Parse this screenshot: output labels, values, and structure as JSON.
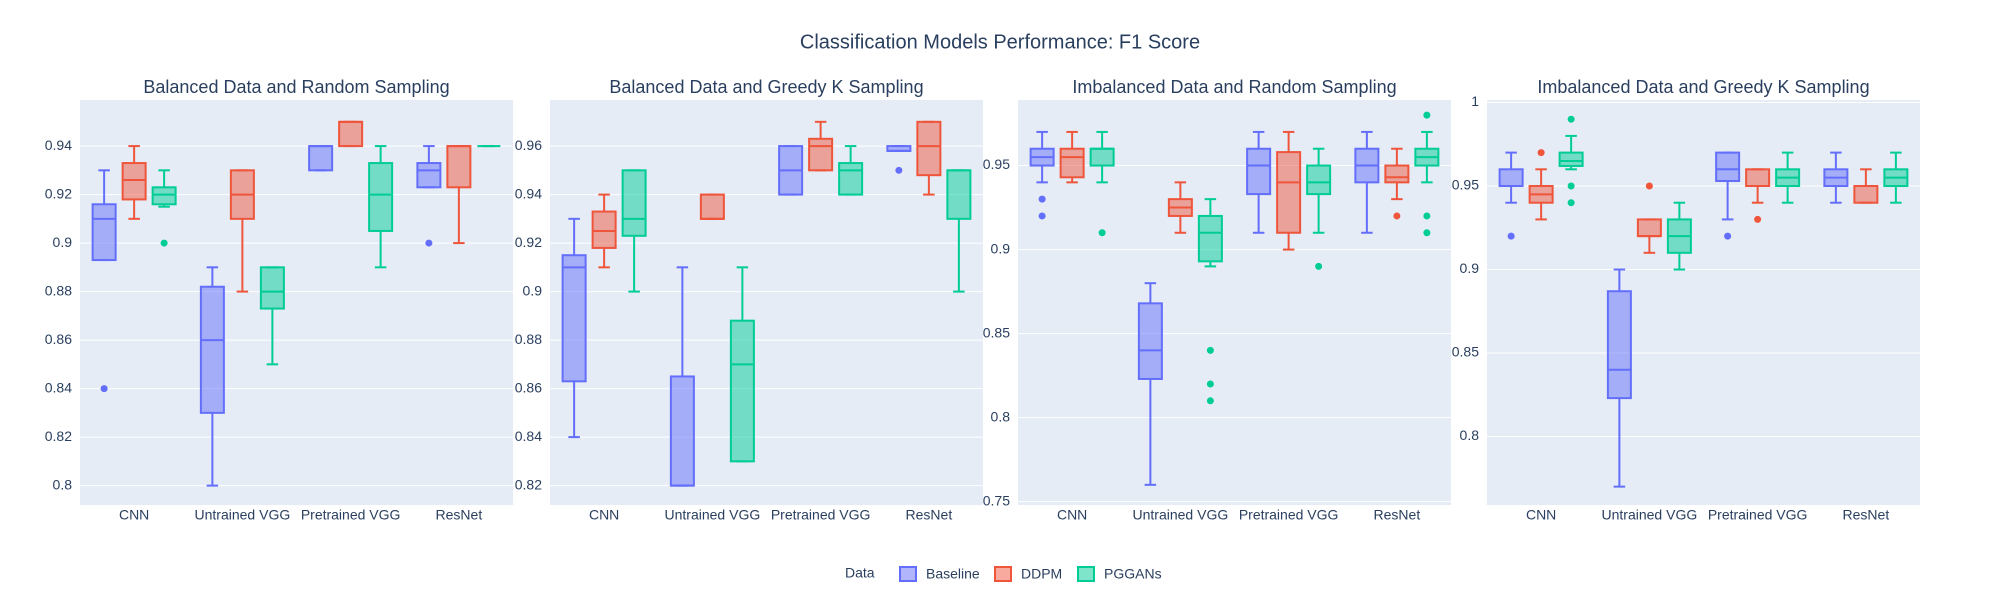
{
  "title": "Classification Models Performance: F1 Score",
  "legend_title": "Data",
  "chart_data": [
    {
      "type": "box",
      "title": "Balanced Data and Random Sampling",
      "categories": [
        "CNN",
        "Untrained VGG",
        "Pretrained VGG",
        "ResNet"
      ],
      "ylim": [
        0.792,
        0.959
      ],
      "yticks": [
        0.8,
        0.82,
        0.84,
        0.86,
        0.88,
        0.9,
        0.92,
        0.94
      ],
      "grid": true,
      "series": [
        {
          "name": "Baseline",
          "color": "#636efa",
          "values": [
            {
              "min": 0.893,
              "q1": 0.893,
              "median": 0.91,
              "q3": 0.916,
              "max": 0.93,
              "outliers": [
                0.84
              ]
            },
            {
              "min": 0.8,
              "q1": 0.83,
              "median": 0.86,
              "q3": 0.882,
              "max": 0.89
            },
            {
              "min": 0.93,
              "q1": 0.93,
              "median": 0.94,
              "q3": 0.94,
              "max": 0.94
            },
            {
              "min": 0.923,
              "q1": 0.923,
              "median": 0.93,
              "q3": 0.933,
              "max": 0.94,
              "outliers": [
                0.9
              ]
            }
          ]
        },
        {
          "name": "DDPM",
          "color": "#ef553b",
          "values": [
            {
              "min": 0.91,
              "q1": 0.918,
              "median": 0.926,
              "q3": 0.933,
              "max": 0.94
            },
            {
              "min": 0.88,
              "q1": 0.91,
              "median": 0.92,
              "q3": 0.93,
              "max": 0.93
            },
            {
              "min": 0.94,
              "q1": 0.94,
              "median": 0.95,
              "q3": 0.95,
              "max": 0.95
            },
            {
              "min": 0.9,
              "q1": 0.923,
              "median": 0.94,
              "q3": 0.94,
              "max": 0.94
            }
          ]
        },
        {
          "name": "PGGANs",
          "color": "#00cc96",
          "values": [
            {
              "min": 0.915,
              "q1": 0.916,
              "median": 0.92,
              "q3": 0.923,
              "max": 0.93,
              "outliers": [
                0.9
              ]
            },
            {
              "min": 0.85,
              "q1": 0.873,
              "median": 0.88,
              "q3": 0.89,
              "max": 0.89
            },
            {
              "min": 0.89,
              "q1": 0.905,
              "median": 0.92,
              "q3": 0.933,
              "max": 0.94
            },
            {
              "min": 0.94,
              "q1": 0.94,
              "median": 0.94,
              "q3": 0.94,
              "max": 0.94
            }
          ]
        }
      ]
    },
    {
      "type": "box",
      "title": "Balanced Data and Greedy K Sampling",
      "categories": [
        "CNN",
        "Untrained VGG",
        "Pretrained VGG",
        "ResNet"
      ],
      "ylim": [
        0.812,
        0.979
      ],
      "yticks": [
        0.82,
        0.84,
        0.86,
        0.88,
        0.9,
        0.92,
        0.94,
        0.96
      ],
      "grid": true,
      "series": [
        {
          "name": "Baseline",
          "color": "#636efa",
          "values": [
            {
              "min": 0.84,
              "q1": 0.863,
              "median": 0.91,
              "q3": 0.915,
              "max": 0.93
            },
            {
              "min": 0.82,
              "q1": 0.82,
              "median": 0.82,
              "q3": 0.865,
              "max": 0.91
            },
            {
              "min": 0.94,
              "q1": 0.94,
              "median": 0.95,
              "q3": 0.96,
              "max": 0.96
            },
            {
              "min": 0.958,
              "q1": 0.958,
              "median": 0.958,
              "q3": 0.96,
              "max": 0.96,
              "outliers": [
                0.95
              ]
            }
          ]
        },
        {
          "name": "DDPM",
          "color": "#ef553b",
          "values": [
            {
              "min": 0.91,
              "q1": 0.918,
              "median": 0.925,
              "q3": 0.933,
              "max": 0.94
            },
            {
              "min": 0.93,
              "q1": 0.93,
              "median": 0.93,
              "q3": 0.94,
              "max": 0.94
            },
            {
              "min": 0.95,
              "q1": 0.95,
              "median": 0.96,
              "q3": 0.963,
              "max": 0.97
            },
            {
              "min": 0.94,
              "q1": 0.948,
              "median": 0.96,
              "q3": 0.97,
              "max": 0.97
            }
          ]
        },
        {
          "name": "PGGANs",
          "color": "#00cc96",
          "values": [
            {
              "min": 0.9,
              "q1": 0.923,
              "median": 0.93,
              "q3": 0.95,
              "max": 0.95
            },
            {
              "min": 0.83,
              "q1": 0.83,
              "median": 0.87,
              "q3": 0.888,
              "max": 0.91
            },
            {
              "min": 0.94,
              "q1": 0.94,
              "median": 0.95,
              "q3": 0.953,
              "max": 0.96
            },
            {
              "min": 0.9,
              "q1": 0.93,
              "median": 0.95,
              "q3": 0.95,
              "max": 0.95
            }
          ]
        }
      ]
    },
    {
      "type": "box",
      "title": "Imbalanced Data and Random Sampling",
      "categories": [
        "CNN",
        "Untrained VGG",
        "Pretrained VGG",
        "ResNet"
      ],
      "ylim": [
        0.748,
        0.989
      ],
      "yticks": [
        0.75,
        0.8,
        0.85,
        0.9,
        0.95
      ],
      "grid": true,
      "series": [
        {
          "name": "Baseline",
          "color": "#636efa",
          "values": [
            {
              "min": 0.94,
              "q1": 0.95,
              "median": 0.955,
              "q3": 0.96,
              "max": 0.97,
              "outliers": [
                0.93,
                0.92
              ]
            },
            {
              "min": 0.76,
              "q1": 0.823,
              "median": 0.84,
              "q3": 0.868,
              "max": 0.88
            },
            {
              "min": 0.91,
              "q1": 0.933,
              "median": 0.95,
              "q3": 0.96,
              "max": 0.97
            },
            {
              "min": 0.91,
              "q1": 0.94,
              "median": 0.95,
              "q3": 0.96,
              "max": 0.97
            }
          ]
        },
        {
          "name": "DDPM",
          "color": "#ef553b",
          "values": [
            {
              "min": 0.94,
              "q1": 0.943,
              "median": 0.955,
              "q3": 0.96,
              "max": 0.97
            },
            {
              "min": 0.91,
              "q1": 0.92,
              "median": 0.925,
              "q3": 0.93,
              "max": 0.94
            },
            {
              "min": 0.9,
              "q1": 0.91,
              "median": 0.94,
              "q3": 0.958,
              "max": 0.97
            },
            {
              "min": 0.93,
              "q1": 0.94,
              "median": 0.943,
              "q3": 0.95,
              "max": 0.96,
              "outliers": [
                0.92
              ]
            }
          ]
        },
        {
          "name": "PGGANs",
          "color": "#00cc96",
          "values": [
            {
              "min": 0.94,
              "q1": 0.95,
              "median": 0.96,
              "q3": 0.96,
              "max": 0.97,
              "outliers": [
                0.91
              ]
            },
            {
              "min": 0.89,
              "q1": 0.893,
              "median": 0.91,
              "q3": 0.92,
              "max": 0.93,
              "outliers": [
                0.84,
                0.82,
                0.81
              ]
            },
            {
              "min": 0.91,
              "q1": 0.933,
              "median": 0.94,
              "q3": 0.95,
              "max": 0.96,
              "outliers": [
                0.89
              ]
            },
            {
              "min": 0.94,
              "q1": 0.95,
              "median": 0.955,
              "q3": 0.96,
              "max": 0.97,
              "outliers": [
                0.98,
                0.92,
                0.91
              ]
            }
          ]
        }
      ]
    },
    {
      "type": "box",
      "title": "Imbalanced Data and Greedy K Sampling",
      "categories": [
        "CNN",
        "Untrained VGG",
        "Pretrained VGG",
        "ResNet"
      ],
      "ylim": [
        0.759,
        1.0015
      ],
      "yticks": [
        0.8,
        0.85,
        0.9,
        0.95,
        1
      ],
      "grid": true,
      "series": [
        {
          "name": "Baseline",
          "color": "#636efa",
          "values": [
            {
              "min": 0.94,
              "q1": 0.95,
              "median": 0.95,
              "q3": 0.96,
              "max": 0.97,
              "outliers": [
                0.92
              ]
            },
            {
              "min": 0.77,
              "q1": 0.823,
              "median": 0.84,
              "q3": 0.887,
              "max": 0.9
            },
            {
              "min": 0.93,
              "q1": 0.953,
              "median": 0.96,
              "q3": 0.97,
              "max": 0.97,
              "outliers": [
                0.92
              ]
            },
            {
              "min": 0.94,
              "q1": 0.95,
              "median": 0.955,
              "q3": 0.96,
              "max": 0.97
            }
          ]
        },
        {
          "name": "DDPM",
          "color": "#ef553b",
          "values": [
            {
              "min": 0.93,
              "q1": 0.94,
              "median": 0.945,
              "q3": 0.95,
              "max": 0.96,
              "outliers": [
                0.97
              ]
            },
            {
              "min": 0.91,
              "q1": 0.92,
              "median": 0.92,
              "q3": 0.93,
              "max": 0.93,
              "outliers": [
                0.95
              ]
            },
            {
              "min": 0.94,
              "q1": 0.95,
              "median": 0.95,
              "q3": 0.96,
              "max": 0.96,
              "outliers": [
                0.93
              ]
            },
            {
              "min": 0.94,
              "q1": 0.94,
              "median": 0.95,
              "q3": 0.95,
              "max": 0.96
            }
          ]
        },
        {
          "name": "PGGANs",
          "color": "#00cc96",
          "values": [
            {
              "min": 0.96,
              "q1": 0.962,
              "median": 0.965,
              "q3": 0.97,
              "max": 0.98,
              "outliers": [
                0.99,
                0.95,
                0.94
              ]
            },
            {
              "min": 0.9,
              "q1": 0.91,
              "median": 0.92,
              "q3": 0.93,
              "max": 0.94
            },
            {
              "min": 0.94,
              "q1": 0.95,
              "median": 0.955,
              "q3": 0.96,
              "max": 0.97
            },
            {
              "min": 0.94,
              "q1": 0.95,
              "median": 0.955,
              "q3": 0.96,
              "max": 0.97
            }
          ]
        }
      ]
    }
  ]
}
